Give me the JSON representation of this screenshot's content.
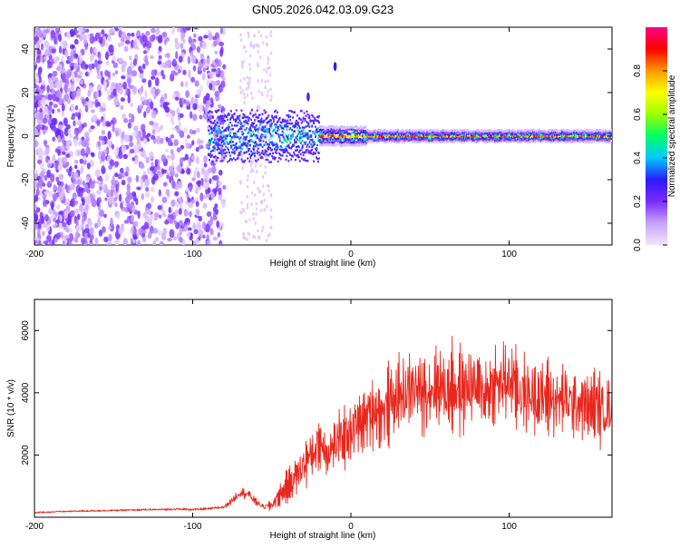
{
  "title": "GN05.2026.042.03.09.G23",
  "chart_data": [
    {
      "type": "heatmap",
      "title": "GN05.2026.042.03.09.G23",
      "xlabel": "Height of straight line (km)",
      "ylabel": "Frequency (Hz)",
      "xlim": [
        -200,
        165
      ],
      "ylim": [
        -50,
        50
      ],
      "xticks": [
        -200,
        -100,
        0,
        100
      ],
      "xtick_labels": [
        "-200",
        "-100",
        "0",
        "100"
      ],
      "yticks": [
        -40,
        -20,
        0,
        20,
        40
      ],
      "ytick_labels": [
        "-40",
        "-20",
        "0",
        "20",
        "40"
      ],
      "colorbar": {
        "label": "Normalized spectral amplitude",
        "range": [
          0,
          1
        ],
        "ticks": [
          0.0,
          0.2,
          0.4,
          0.6,
          0.8
        ],
        "tick_labels": [
          "0.0",
          "0.2",
          "0.4",
          "0.6",
          "0.8"
        ],
        "colormap": [
          "#f2e6ff",
          "#c9a3ff",
          "#7a2cff",
          "#2a1cff",
          "#00c8ff",
          "#00ff66",
          "#9cff00",
          "#ffff00",
          "#ff9900",
          "#ff0000",
          "#ff0088"
        ]
      },
      "features": [
        {
          "description": "broadband low-amplitude noise",
          "x_range": [
            -200,
            -80
          ],
          "freq_range": [
            -50,
            50
          ],
          "amplitude": 0.15
        },
        {
          "description": "sparse noise streaks",
          "x_range": [
            -70,
            -50
          ],
          "freq_range": [
            -48,
            48
          ],
          "amplitude": 0.05
        },
        {
          "description": "carrier line",
          "x_range": [
            -90,
            165
          ],
          "freq": 0,
          "amplitude": 0.8
        },
        {
          "description": "isolated spike",
          "x": -10,
          "freq": 32,
          "amplitude": 0.3
        },
        {
          "description": "isolated spike",
          "x": -27,
          "freq": 18,
          "amplitude": 0.25
        }
      ]
    },
    {
      "type": "line",
      "title": "",
      "xlabel": "Height of straight line (km)",
      "ylabel": "SNR (10 * v/v)",
      "xlim": [
        -200,
        165
      ],
      "ylim": [
        0,
        7000
      ],
      "xticks": [
        -200,
        -100,
        0,
        100
      ],
      "xtick_labels": [
        "-200",
        "-100",
        "0",
        "100"
      ],
      "yticks": [
        2000,
        4000,
        6000
      ],
      "ytick_labels": [
        "2000",
        "4000",
        "6000"
      ],
      "color": "#e8281e",
      "series": [
        {
          "name": "SNR",
          "x": [
            -200,
            -190,
            -180,
            -170,
            -160,
            -150,
            -140,
            -130,
            -120,
            -110,
            -100,
            -90,
            -80,
            -75,
            -70,
            -65,
            -60,
            -55,
            -50,
            -45,
            -40,
            -35,
            -30,
            -25,
            -20,
            -15,
            -10,
            -5,
            0,
            5,
            10,
            15,
            20,
            25,
            30,
            35,
            40,
            45,
            50,
            55,
            60,
            65,
            70,
            75,
            80,
            85,
            90,
            95,
            100,
            105,
            110,
            115,
            120,
            125,
            130,
            135,
            140,
            145,
            150,
            155,
            160,
            165
          ],
          "values": [
            150,
            170,
            190,
            200,
            210,
            220,
            230,
            240,
            250,
            260,
            250,
            270,
            330,
            550,
            800,
            750,
            500,
            320,
            400,
            700,
            1000,
            1300,
            1700,
            2000,
            2400,
            2100,
            2300,
            2600,
            2800,
            3000,
            3200,
            3500,
            3300,
            3700,
            3900,
            4000,
            4200,
            4000,
            4100,
            4300,
            4100,
            4200,
            4000,
            4300,
            4100,
            4000,
            4200,
            4300,
            4400,
            4100,
            3900,
            4000,
            3800,
            3900,
            3700,
            3800,
            3600,
            3700,
            3500,
            3600,
            3400,
            3600
          ]
        }
      ],
      "envelope_amplitude": [
        40,
        40,
        40,
        45,
        45,
        45,
        50,
        50,
        50,
        55,
        55,
        60,
        80,
        150,
        250,
        250,
        180,
        120,
        300,
        500,
        700,
        900,
        1100,
        1200,
        1300,
        1300,
        1300,
        1400,
        1400,
        1500,
        1500,
        1600,
        1600,
        1700,
        1700,
        1800,
        1900,
        1900,
        1900,
        2000,
        1900,
        1900,
        1900,
        2000,
        1900,
        1900,
        1900,
        2000,
        2000,
        1900,
        1800,
        1800,
        1800,
        1800,
        1700,
        1700,
        1700,
        1700,
        1600,
        1600,
        1600,
        1600
      ]
    }
  ]
}
